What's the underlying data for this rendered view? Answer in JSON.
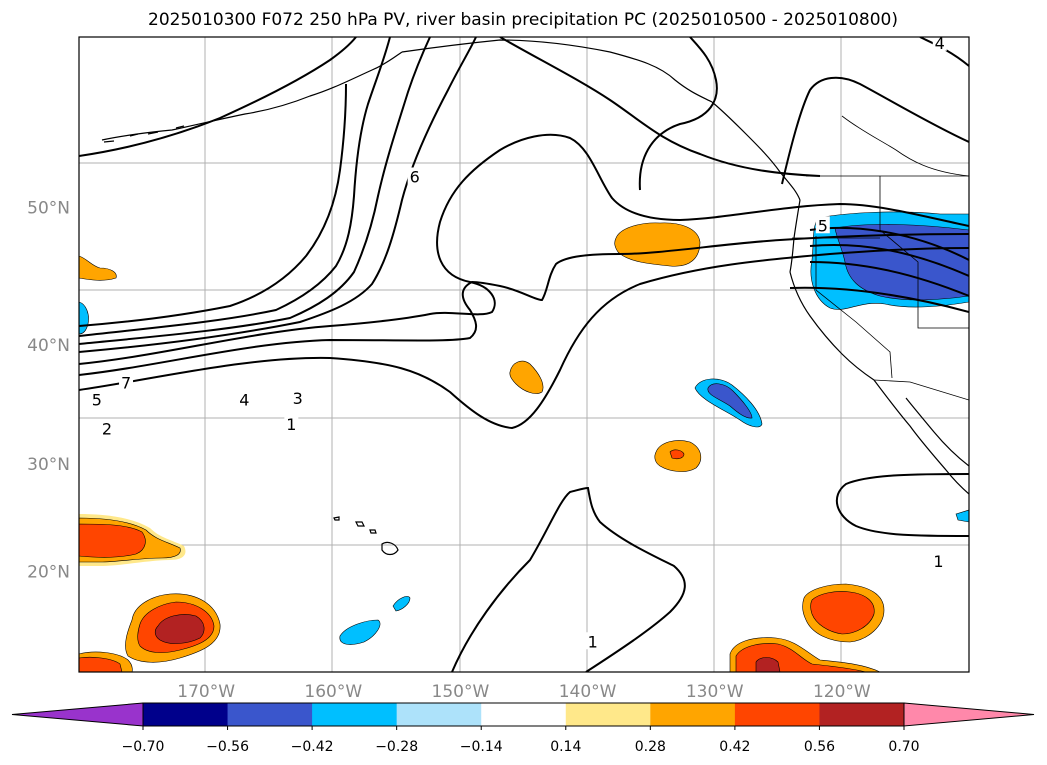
{
  "title": "2025010300 F072 250 hPa PV, river basin precipitation PC (2025010500 - 2025010800)",
  "chart_data": {
    "type": "map",
    "title": "2025010300 F072 250 hPa PV, river basin precipitation PC (2025010500 - 2025010800)",
    "projection": "Mercator",
    "lon_range": [
      -180,
      -110
    ],
    "lat_range": [
      10,
      60
    ],
    "grid": true,
    "lon_ticks": [
      {
        "lon": -170,
        "label": "170°W"
      },
      {
        "lon": -160,
        "label": "160°W"
      },
      {
        "lon": -150,
        "label": "150°W"
      },
      {
        "lon": -140,
        "label": "140°W"
      },
      {
        "lon": -130,
        "label": "130°W"
      },
      {
        "lon": -120,
        "label": "120°W"
      }
    ],
    "lat_ticks": [
      {
        "lat": 20,
        "label": "20°N"
      },
      {
        "lat": 30,
        "label": "30°N"
      },
      {
        "lat": 40,
        "label": "40°N"
      },
      {
        "lat": 50,
        "label": "50°N"
      }
    ],
    "colorbar": {
      "orientation": "horizontal",
      "extend": "both",
      "levels": [
        -0.7,
        -0.56,
        -0.42,
        -0.28,
        -0.14,
        0.14,
        0.28,
        0.42,
        0.56,
        0.7
      ],
      "tick_labels": [
        "−0.70",
        "−0.56",
        "−0.42",
        "−0.28",
        "−0.14",
        "0.14",
        "0.28",
        "0.42",
        "0.56",
        "0.70"
      ],
      "colors": [
        "#9933CC",
        "#00008B",
        "#3A56CC",
        "#00BFFF",
        "#ADE2FA",
        "#FFFFFF",
        "#FFE88A",
        "#FFA500",
        "#FF4500",
        "#B22222",
        "#FF88AA"
      ]
    },
    "pv_contour_labels": [
      {
        "value": "7",
        "lon": -176.3,
        "lat": 37.0
      },
      {
        "value": "5",
        "lon": -178.6,
        "lat": 35.6
      },
      {
        "value": "4",
        "lon": -167.0,
        "lat": 35.6
      },
      {
        "value": "3",
        "lon": -162.8,
        "lat": 35.7
      },
      {
        "value": "2",
        "lon": -177.8,
        "lat": 33.1
      },
      {
        "value": "1",
        "lon": -163.3,
        "lat": 33.5
      },
      {
        "value": "6",
        "lon": -153.6,
        "lat": 52.0
      },
      {
        "value": "5",
        "lon": -121.5,
        "lat": 48.8
      },
      {
        "value": "1",
        "lon": -112.4,
        "lat": 21.0
      },
      {
        "value": "1",
        "lon": -139.6,
        "lat": 13.1
      },
      {
        "value": "4",
        "lon": -112.3,
        "lat": 59.7
      }
    ]
  }
}
